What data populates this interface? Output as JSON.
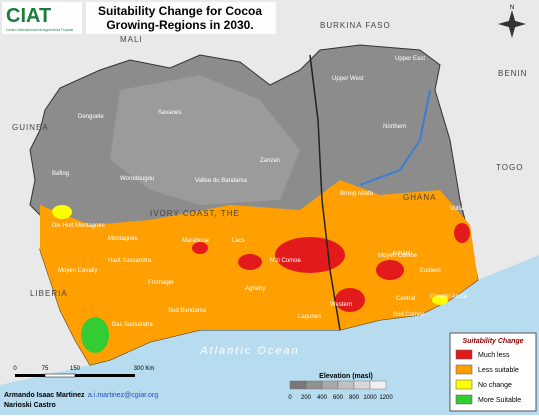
{
  "header": {
    "logo": "CIAT",
    "logo_subtitle": "Centro Internacional de Agricultura Tropical",
    "title_line1": "Suitability Change for Cocoa",
    "title_line2": "Growing-Regions in 2030."
  },
  "compass": "N",
  "countries": [
    "MALI",
    "BURKINA FASO",
    "GUINEA",
    "BENIN",
    "TOGO",
    "LIBERIA",
    "GHANA",
    "IVORY COAST, THE"
  ],
  "regions": [
    "Denguele",
    "Savanes",
    "Zanzan",
    "Bafing",
    "Worodougou",
    "Vallee du Bandama",
    "Dix-Huit Montagnes",
    "Montagnes",
    "Moyen Cavally",
    "Marahoue",
    "Lacs",
    "N'zi Comoe",
    "Moyen Comoe",
    "Fromager",
    "Haut Sassandra",
    "Sud Bandama",
    "Agneby",
    "Lagunes",
    "Sud Comoe",
    "Bas Sassandra",
    "Upper West",
    "Upper East",
    "Northern",
    "Brong Ahafo",
    "Ashanti",
    "Western",
    "Central",
    "Eastern",
    "Volta",
    "Greater Accra"
  ],
  "ocean": "Atlantic Ocean",
  "legend": {
    "title": "Suitability Change",
    "items": [
      {
        "label": "Much less",
        "color": "#e31a1c"
      },
      {
        "label": "Less suitable",
        "color": "#ff9f00"
      },
      {
        "label": "No change",
        "color": "#ffff00"
      },
      {
        "label": "More Suitable",
        "color": "#33cc33"
      }
    ]
  },
  "elevation": {
    "title": "Elevation (masl)",
    "ticks": [
      "0",
      "200",
      "400",
      "600",
      "800",
      "1000",
      "1200"
    ]
  },
  "scale_bar": {
    "ticks": [
      "0",
      "75",
      "150",
      "300 Km"
    ]
  },
  "authors": {
    "name1": "Armando Isaac Martinez",
    "email": "a.i.martinez@cgiar.org",
    "name2": "Narioski Castro"
  }
}
